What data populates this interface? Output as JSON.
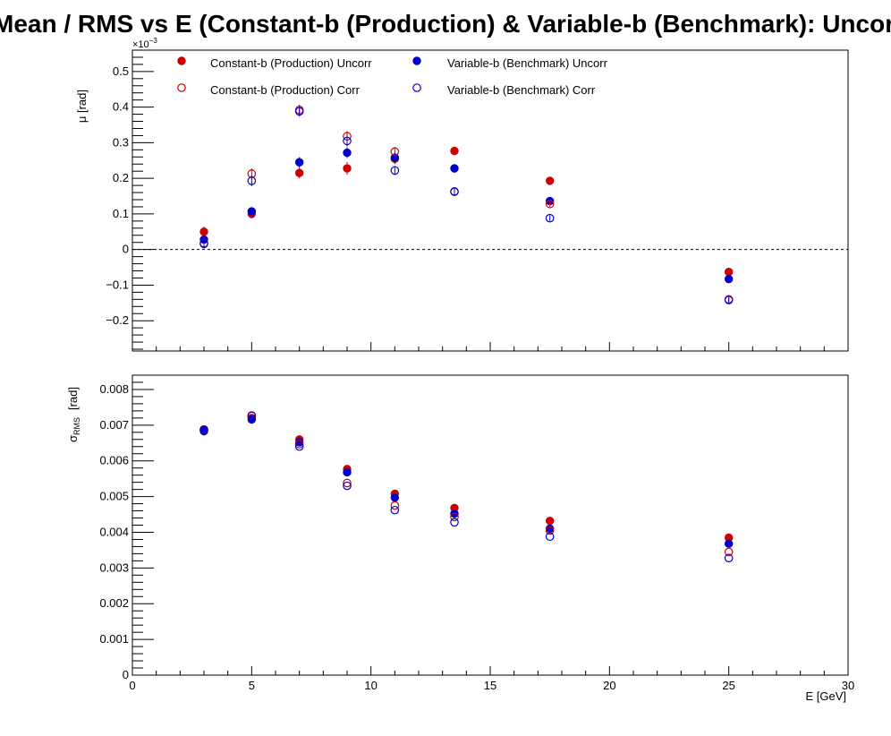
{
  "title": "Mean / RMS vs E  (Constant-b (Production) & Variable-b (Benchmark): Uncorr v",
  "colors": {
    "constant": "#cc0000",
    "variable": "#0000cc"
  },
  "chart_data": [
    {
      "type": "scatter",
      "ylabel": "μ  [rad]",
      "exponent_label": "×10",
      "exponent_value": "−3",
      "xlim": [
        0,
        30
      ],
      "ylim": [
        -0.285,
        0.56
      ],
      "ytick_values": [
        -0.2,
        -0.1,
        0,
        0.1,
        0.2,
        0.3,
        0.4,
        0.5
      ],
      "ytick_labels": [
        "−0.2",
        "−0.1",
        "0",
        "0.1",
        "0.2",
        "0.3",
        "0.4",
        "0.5"
      ],
      "reference_line": 0,
      "legend_position": "top",
      "x": [
        3,
        5,
        7,
        9,
        11,
        13.5,
        17.5,
        25
      ],
      "series": [
        {
          "name": "Constant-b (Production) Uncorr",
          "style": "filled",
          "color": "#cc0000",
          "values": [
            0.05,
            0.1,
            0.215,
            0.228,
            0.255,
            0.277,
            0.193,
            -0.063
          ],
          "errors": [
            0.015,
            0.012,
            0.015,
            0.018,
            0.015,
            0.012,
            0.008,
            0.008
          ]
        },
        {
          "name": "Variable-b (Benchmark) Uncorr",
          "style": "filled",
          "color": "#0000cc",
          "values": [
            0.028,
            0.107,
            0.245,
            0.272,
            0.258,
            0.228,
            0.136,
            -0.083
          ],
          "errors": [
            0.012,
            0.012,
            0.015,
            0.015,
            0.015,
            0.012,
            0.008,
            0.008
          ]
        },
        {
          "name": "Constant-b (Production) Corr",
          "style": "open",
          "color": "#cc0000",
          "values": [
            0.018,
            0.213,
            0.392,
            0.318,
            0.275,
            0.162,
            0.128,
            -0.14
          ],
          "errors": [
            0.015,
            0.015,
            0.015,
            0.015,
            0.013,
            0.01,
            0.008,
            0.008
          ]
        },
        {
          "name": "Variable-b (Benchmark) Corr",
          "style": "open",
          "color": "#0000cc",
          "values": [
            0.016,
            0.193,
            0.388,
            0.305,
            0.222,
            0.163,
            0.088,
            -0.142
          ],
          "errors": [
            0.012,
            0.015,
            0.015,
            0.015,
            0.013,
            0.01,
            0.008,
            0.008
          ]
        }
      ]
    },
    {
      "type": "scatter",
      "ylabel": "σ",
      "ylabel_sub": "RMS",
      "ylabel_unit": "[rad]",
      "xlabel": "E  [GeV]",
      "xlim": [
        0,
        30
      ],
      "ylim": [
        0,
        0.0084
      ],
      "ytick_values": [
        0,
        0.001,
        0.002,
        0.003,
        0.004,
        0.005,
        0.006,
        0.007,
        0.008
      ],
      "ytick_labels": [
        "0",
        "0.001",
        "0.002",
        "0.003",
        "0.004",
        "0.005",
        "0.006",
        "0.007",
        "0.008"
      ],
      "xtick_values": [
        0,
        5,
        10,
        15,
        20,
        25,
        30
      ],
      "xtick_labels": [
        "0",
        "5",
        "10",
        "15",
        "20",
        "25",
        "30"
      ],
      "x": [
        3,
        5,
        7,
        9,
        11,
        13.5,
        17.5,
        25
      ],
      "series": [
        {
          "name": "Constant-b (Production) Uncorr",
          "style": "filled",
          "color": "#cc0000",
          "values": [
            0.00685,
            0.0072,
            0.0066,
            0.00577,
            0.00508,
            0.00468,
            0.00432,
            0.00385
          ]
        },
        {
          "name": "Variable-b (Benchmark) Uncorr",
          "style": "filled",
          "color": "#0000cc",
          "values": [
            0.00683,
            0.00716,
            0.00652,
            0.00568,
            0.00497,
            0.00452,
            0.0041,
            0.00368
          ]
        },
        {
          "name": "Constant-b (Production) Corr",
          "style": "open",
          "color": "#cc0000",
          "values": [
            0.00688,
            0.00727,
            0.00647,
            0.00538,
            0.00475,
            0.00443,
            0.00405,
            0.00345
          ]
        },
        {
          "name": "Variable-b (Benchmark) Corr",
          "style": "open",
          "color": "#0000cc",
          "values": [
            0.00687,
            0.00726,
            0.0064,
            0.0053,
            0.00462,
            0.00428,
            0.00388,
            0.00328
          ]
        }
      ]
    }
  ]
}
